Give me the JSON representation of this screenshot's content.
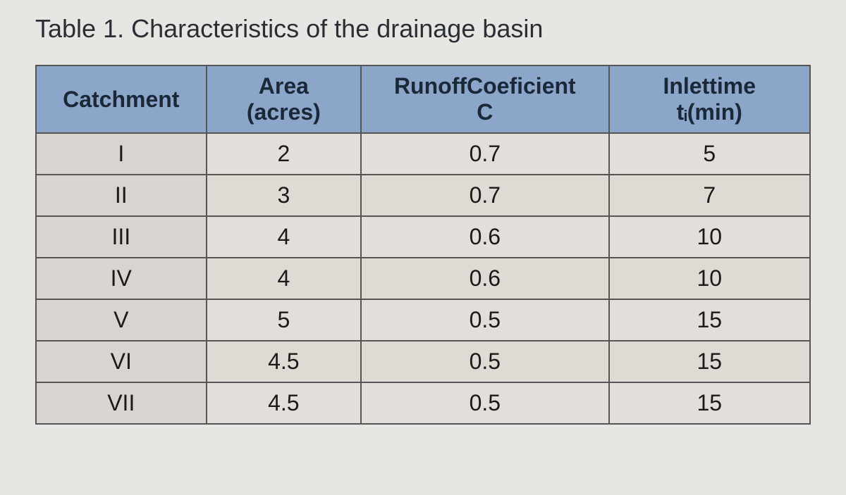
{
  "title": "Table 1. Characteristics of the drainage basin",
  "table": {
    "columns": [
      {
        "line1": "Catchment",
        "line2": ""
      },
      {
        "line1": "Area",
        "line2": "(acres)"
      },
      {
        "line1": "RunoffCoeficient",
        "line2": "C"
      },
      {
        "line1": "Inlettime",
        "line2": "tᵢ(min)"
      }
    ],
    "rows": [
      [
        "I",
        "2",
        "0.7",
        "5"
      ],
      [
        "II",
        "3",
        "0.7",
        "7"
      ],
      [
        "III",
        "4",
        "0.6",
        "10"
      ],
      [
        "IV",
        "4",
        "0.6",
        "10"
      ],
      [
        "V",
        "5",
        "0.5",
        "15"
      ],
      [
        "VI",
        "4.5",
        "0.5",
        "15"
      ],
      [
        "VII",
        "4.5",
        "0.5",
        "15"
      ]
    ],
    "column_widths": [
      "22%",
      "20%",
      "32%",
      "26%"
    ],
    "header_bg": "#8ba6c8",
    "header_text_color": "#1a2838",
    "firstcol_bg": "#d8d5d0",
    "row_odd_bg": "#e2ded9",
    "row_even_bg": "#dedad4",
    "border_color": "#555",
    "title_color": "#2a2e35",
    "title_fontsize": 36,
    "cell_fontsize": 32
  }
}
